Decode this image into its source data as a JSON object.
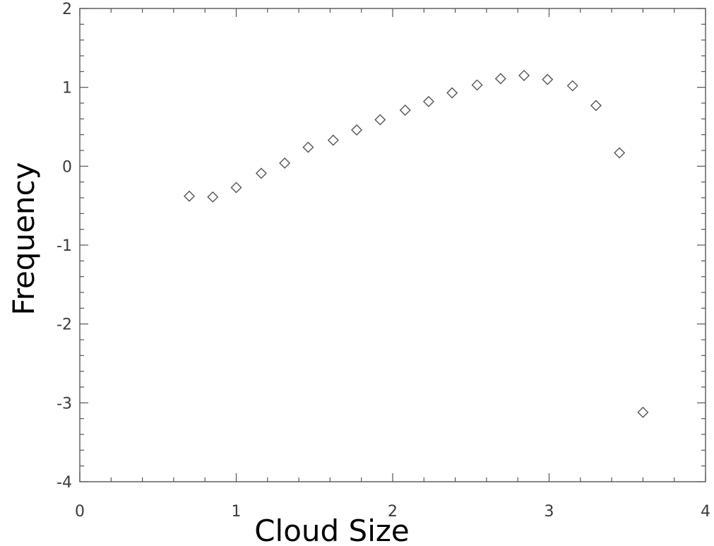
{
  "chart_data": {
    "type": "scatter",
    "title": "",
    "xlabel": "Cloud Size",
    "ylabel": "Frequency",
    "xlim": [
      0,
      4
    ],
    "ylim": [
      -4,
      2
    ],
    "x_ticks": [
      0,
      1,
      2,
      3,
      4
    ],
    "y_ticks": [
      -4,
      -3,
      -2,
      -1,
      0,
      1,
      2
    ],
    "grid": false,
    "marker": "diamond-open",
    "series": [
      {
        "x": [
          0.7,
          0.85,
          1.0,
          1.16,
          1.31,
          1.46,
          1.62,
          1.77,
          1.92,
          2.08,
          2.23,
          2.38,
          2.54,
          2.69,
          2.84,
          2.99,
          3.15,
          3.3,
          3.45,
          3.6
        ],
        "y": [
          -0.38,
          -0.39,
          -0.27,
          -0.09,
          0.04,
          0.24,
          0.33,
          0.46,
          0.59,
          0.71,
          0.82,
          0.93,
          1.03,
          1.11,
          1.15,
          1.1,
          1.02,
          0.77,
          0.17,
          -3.12
        ]
      }
    ]
  }
}
